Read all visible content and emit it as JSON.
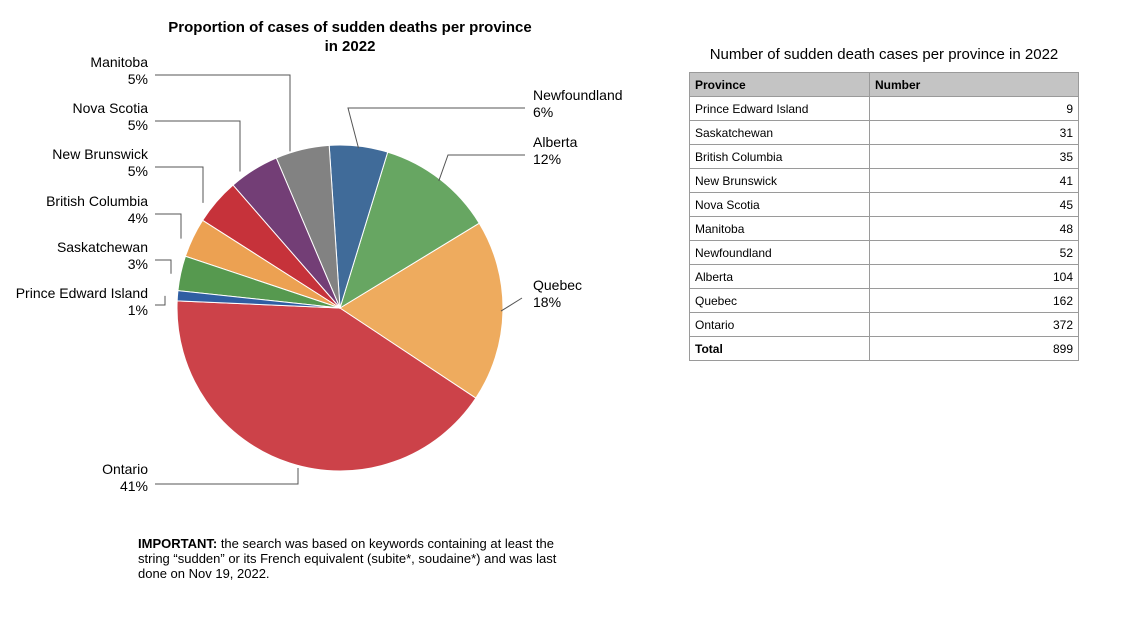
{
  "chart_data": {
    "type": "pie",
    "title_line1": "Proportion of cases of sudden deaths per province",
    "title_line2": "in 2022",
    "slices": [
      {
        "name": "Ontario",
        "value": 372,
        "label_pct": "41%",
        "color": "#cc4249"
      },
      {
        "name": "Quebec",
        "value": 162,
        "label_pct": "18%",
        "color": "#eeab5e"
      },
      {
        "name": "Alberta",
        "value": 104,
        "label_pct": "12%",
        "color": "#67a662"
      },
      {
        "name": "Newfoundland",
        "value": 52,
        "label_pct": "6%",
        "color": "#406b99"
      },
      {
        "name": "Manitoba",
        "value": 48,
        "label_pct": "5%",
        "color": "#828282"
      },
      {
        "name": "Nova Scotia",
        "value": 45,
        "label_pct": "5%",
        "color": "#733e76"
      },
      {
        "name": "New Brunswick",
        "value": 41,
        "label_pct": "5%",
        "color": "#c6323a"
      },
      {
        "name": "British Columbia",
        "value": 35,
        "label_pct": "4%",
        "color": "#eca152"
      },
      {
        "name": "Saskatchewan",
        "value": 31,
        "label_pct": "3%",
        "color": "#56994f"
      },
      {
        "name": "Prince Edward Island",
        "value": 9,
        "label_pct": "1%",
        "color": "#2f5ea2"
      }
    ]
  },
  "note": {
    "bold": "IMPORTANT:",
    "text": " the search was based on keywords containing at least the string “sudden” or its French equivalent (subite*, soudaine*) and was last done on Nov 19, 2022."
  },
  "table": {
    "title": "Number of sudden death cases per province in 2022",
    "headers": [
      "Province",
      "Number"
    ],
    "rows": [
      [
        "Prince Edward Island",
        "9"
      ],
      [
        "Saskatchewan",
        "31"
      ],
      [
        "British Columbia",
        "35"
      ],
      [
        "New Brunswick",
        "41"
      ],
      [
        "Nova Scotia",
        "45"
      ],
      [
        "Manitoba",
        "48"
      ],
      [
        "Newfoundland",
        "52"
      ],
      [
        "Alberta",
        "104"
      ],
      [
        "Quebec",
        "162"
      ],
      [
        "Ontario",
        "372"
      ]
    ],
    "total": [
      "Total",
      "899"
    ]
  }
}
